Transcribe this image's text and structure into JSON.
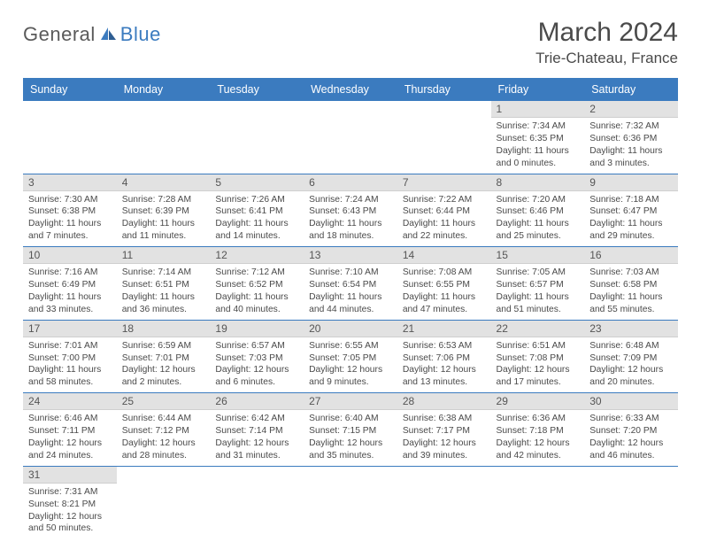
{
  "brand": {
    "part1": "General",
    "part2": "Blue",
    "logo_color": "#3b7bbf"
  },
  "header": {
    "month_year": "March 2024",
    "location": "Trie-Chateau, France"
  },
  "colors": {
    "header_bg": "#3b7bbf",
    "header_fg": "#ffffff",
    "daynum_bg": "#e2e2e2",
    "rule": "#3b7bbf"
  },
  "weekdays": [
    "Sunday",
    "Monday",
    "Tuesday",
    "Wednesday",
    "Thursday",
    "Friday",
    "Saturday"
  ],
  "weeks": [
    [
      null,
      null,
      null,
      null,
      null,
      {
        "d": "1",
        "sr": "Sunrise: 7:34 AM",
        "ss": "Sunset: 6:35 PM",
        "dl1": "Daylight: 11 hours",
        "dl2": "and 0 minutes."
      },
      {
        "d": "2",
        "sr": "Sunrise: 7:32 AM",
        "ss": "Sunset: 6:36 PM",
        "dl1": "Daylight: 11 hours",
        "dl2": "and 3 minutes."
      }
    ],
    [
      {
        "d": "3",
        "sr": "Sunrise: 7:30 AM",
        "ss": "Sunset: 6:38 PM",
        "dl1": "Daylight: 11 hours",
        "dl2": "and 7 minutes."
      },
      {
        "d": "4",
        "sr": "Sunrise: 7:28 AM",
        "ss": "Sunset: 6:39 PM",
        "dl1": "Daylight: 11 hours",
        "dl2": "and 11 minutes."
      },
      {
        "d": "5",
        "sr": "Sunrise: 7:26 AM",
        "ss": "Sunset: 6:41 PM",
        "dl1": "Daylight: 11 hours",
        "dl2": "and 14 minutes."
      },
      {
        "d": "6",
        "sr": "Sunrise: 7:24 AM",
        "ss": "Sunset: 6:43 PM",
        "dl1": "Daylight: 11 hours",
        "dl2": "and 18 minutes."
      },
      {
        "d": "7",
        "sr": "Sunrise: 7:22 AM",
        "ss": "Sunset: 6:44 PM",
        "dl1": "Daylight: 11 hours",
        "dl2": "and 22 minutes."
      },
      {
        "d": "8",
        "sr": "Sunrise: 7:20 AM",
        "ss": "Sunset: 6:46 PM",
        "dl1": "Daylight: 11 hours",
        "dl2": "and 25 minutes."
      },
      {
        "d": "9",
        "sr": "Sunrise: 7:18 AM",
        "ss": "Sunset: 6:47 PM",
        "dl1": "Daylight: 11 hours",
        "dl2": "and 29 minutes."
      }
    ],
    [
      {
        "d": "10",
        "sr": "Sunrise: 7:16 AM",
        "ss": "Sunset: 6:49 PM",
        "dl1": "Daylight: 11 hours",
        "dl2": "and 33 minutes."
      },
      {
        "d": "11",
        "sr": "Sunrise: 7:14 AM",
        "ss": "Sunset: 6:51 PM",
        "dl1": "Daylight: 11 hours",
        "dl2": "and 36 minutes."
      },
      {
        "d": "12",
        "sr": "Sunrise: 7:12 AM",
        "ss": "Sunset: 6:52 PM",
        "dl1": "Daylight: 11 hours",
        "dl2": "and 40 minutes."
      },
      {
        "d": "13",
        "sr": "Sunrise: 7:10 AM",
        "ss": "Sunset: 6:54 PM",
        "dl1": "Daylight: 11 hours",
        "dl2": "and 44 minutes."
      },
      {
        "d": "14",
        "sr": "Sunrise: 7:08 AM",
        "ss": "Sunset: 6:55 PM",
        "dl1": "Daylight: 11 hours",
        "dl2": "and 47 minutes."
      },
      {
        "d": "15",
        "sr": "Sunrise: 7:05 AM",
        "ss": "Sunset: 6:57 PM",
        "dl1": "Daylight: 11 hours",
        "dl2": "and 51 minutes."
      },
      {
        "d": "16",
        "sr": "Sunrise: 7:03 AM",
        "ss": "Sunset: 6:58 PM",
        "dl1": "Daylight: 11 hours",
        "dl2": "and 55 minutes."
      }
    ],
    [
      {
        "d": "17",
        "sr": "Sunrise: 7:01 AM",
        "ss": "Sunset: 7:00 PM",
        "dl1": "Daylight: 11 hours",
        "dl2": "and 58 minutes."
      },
      {
        "d": "18",
        "sr": "Sunrise: 6:59 AM",
        "ss": "Sunset: 7:01 PM",
        "dl1": "Daylight: 12 hours",
        "dl2": "and 2 minutes."
      },
      {
        "d": "19",
        "sr": "Sunrise: 6:57 AM",
        "ss": "Sunset: 7:03 PM",
        "dl1": "Daylight: 12 hours",
        "dl2": "and 6 minutes."
      },
      {
        "d": "20",
        "sr": "Sunrise: 6:55 AM",
        "ss": "Sunset: 7:05 PM",
        "dl1": "Daylight: 12 hours",
        "dl2": "and 9 minutes."
      },
      {
        "d": "21",
        "sr": "Sunrise: 6:53 AM",
        "ss": "Sunset: 7:06 PM",
        "dl1": "Daylight: 12 hours",
        "dl2": "and 13 minutes."
      },
      {
        "d": "22",
        "sr": "Sunrise: 6:51 AM",
        "ss": "Sunset: 7:08 PM",
        "dl1": "Daylight: 12 hours",
        "dl2": "and 17 minutes."
      },
      {
        "d": "23",
        "sr": "Sunrise: 6:48 AM",
        "ss": "Sunset: 7:09 PM",
        "dl1": "Daylight: 12 hours",
        "dl2": "and 20 minutes."
      }
    ],
    [
      {
        "d": "24",
        "sr": "Sunrise: 6:46 AM",
        "ss": "Sunset: 7:11 PM",
        "dl1": "Daylight: 12 hours",
        "dl2": "and 24 minutes."
      },
      {
        "d": "25",
        "sr": "Sunrise: 6:44 AM",
        "ss": "Sunset: 7:12 PM",
        "dl1": "Daylight: 12 hours",
        "dl2": "and 28 minutes."
      },
      {
        "d": "26",
        "sr": "Sunrise: 6:42 AM",
        "ss": "Sunset: 7:14 PM",
        "dl1": "Daylight: 12 hours",
        "dl2": "and 31 minutes."
      },
      {
        "d": "27",
        "sr": "Sunrise: 6:40 AM",
        "ss": "Sunset: 7:15 PM",
        "dl1": "Daylight: 12 hours",
        "dl2": "and 35 minutes."
      },
      {
        "d": "28",
        "sr": "Sunrise: 6:38 AM",
        "ss": "Sunset: 7:17 PM",
        "dl1": "Daylight: 12 hours",
        "dl2": "and 39 minutes."
      },
      {
        "d": "29",
        "sr": "Sunrise: 6:36 AM",
        "ss": "Sunset: 7:18 PM",
        "dl1": "Daylight: 12 hours",
        "dl2": "and 42 minutes."
      },
      {
        "d": "30",
        "sr": "Sunrise: 6:33 AM",
        "ss": "Sunset: 7:20 PM",
        "dl1": "Daylight: 12 hours",
        "dl2": "and 46 minutes."
      }
    ],
    [
      {
        "d": "31",
        "sr": "Sunrise: 7:31 AM",
        "ss": "Sunset: 8:21 PM",
        "dl1": "Daylight: 12 hours",
        "dl2": "and 50 minutes."
      },
      null,
      null,
      null,
      null,
      null,
      null
    ]
  ]
}
